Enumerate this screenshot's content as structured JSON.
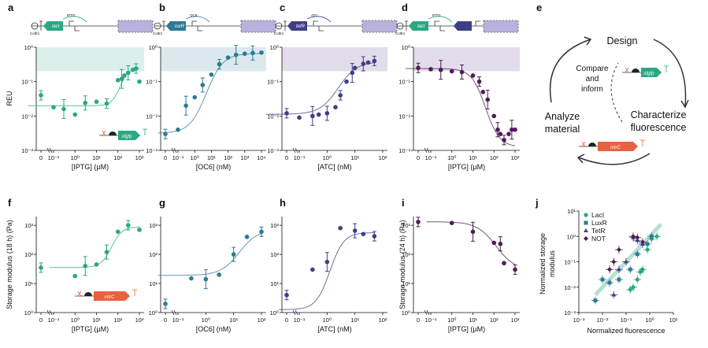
{
  "colors": {
    "lacI": "#2aa882",
    "luxR": "#2c7a95",
    "tetR": "#3e3f86",
    "not": "#4d1d55",
    "mtrc": "#e8623f",
    "shade_green": "#dcefeb",
    "shade_blue": "#dbe9ee",
    "shade_purple": "#e3dcea",
    "box_fill": "#b8b1dc"
  },
  "figure": {
    "panel_labels": [
      "a",
      "b",
      "c",
      "d",
      "e",
      "f",
      "g",
      "h",
      "i",
      "j"
    ],
    "top_ylabel": "REU",
    "bottom_ylabel": "Storage modulus (18 h) (Pa)",
    "bottom_ylabel_i": "Storage modulus (24 h) (Pa)",
    "y_top_ticks": [
      "10⁰",
      "10⁻¹",
      "10⁻²",
      "10⁻³"
    ],
    "y_bottom_ticks": [
      "10³",
      "10²",
      "10¹",
      "10⁰"
    ]
  },
  "constructs": {
    "a": {
      "inducer": "IPTG",
      "ori": "ColE1",
      "gene": "lacI",
      "prom": "P_tac"
    },
    "b": {
      "inducer": "OC6",
      "ori": "ColE1",
      "gene": "luxR",
      "prom": "P_lux"
    },
    "c": {
      "inducer": "ATC",
      "ori": "ColE1",
      "gene": "tetR",
      "prom": "P_tet"
    },
    "d": {
      "inducer": "IPTG",
      "ori": "ColE1",
      "gene": "lacI",
      "prom": "P_tac",
      "gene2": "tetR",
      "prom2": "P_tet"
    },
    "sfgfp": "sfgfp",
    "mtrc": "mtrC"
  },
  "cycle": {
    "design": "Design",
    "characterize_1": "Characterize",
    "characterize_2": "fluorescence",
    "analyze_1": "Analyze",
    "analyze_2": "material",
    "compare_1": "Compare",
    "compare_2": "and",
    "compare_3": "inform"
  },
  "legend_j": [
    "LacI",
    "LuxR",
    "TetR",
    "NOT"
  ],
  "chart_data": [
    {
      "panel": "a",
      "type": "scatter",
      "xlabel": "[IPTG] (µM)",
      "ylabel": "REU",
      "yscale": "log",
      "ylim": [
        0.001,
        1
      ],
      "xticks": [
        "0",
        "10⁻¹",
        "10⁰",
        "10¹",
        "10²",
        "10³"
      ],
      "x": [
        0,
        0.1,
        0.3,
        1,
        3,
        10,
        30,
        100,
        150,
        200,
        300,
        500,
        700,
        1000
      ],
      "y": [
        0.04,
        0.018,
        0.016,
        0.011,
        0.024,
        0.026,
        0.023,
        0.11,
        0.12,
        0.15,
        0.18,
        0.22,
        0.24,
        0.1
      ]
    },
    {
      "panel": "b",
      "type": "scatter",
      "xlabel": "[OC6] (nM)",
      "ylabel": "REU",
      "yscale": "log",
      "ylim": [
        0.001,
        1
      ],
      "xticks": [
        "0",
        "10⁻¹",
        "10⁰",
        "10¹",
        "10²",
        "10³",
        "10⁴"
      ],
      "x": [
        0,
        0.1,
        0.3,
        1,
        3,
        10,
        30,
        100,
        300,
        1000,
        3000,
        10000
      ],
      "y": [
        0.003,
        0.004,
        0.02,
        0.035,
        0.08,
        0.16,
        0.32,
        0.5,
        0.6,
        0.65,
        0.68,
        0.7
      ]
    },
    {
      "panel": "c",
      "type": "scatter",
      "xlabel": "[ATC] (nM)",
      "ylabel": "REU",
      "yscale": "log",
      "ylim": [
        0.001,
        1
      ],
      "xticks": [
        "0",
        "10⁻¹",
        "10⁰",
        "10¹",
        "10²"
      ],
      "x": [
        0,
        0.1,
        0.3,
        0.5,
        1,
        2,
        3,
        5,
        8,
        10,
        20,
        30,
        50
      ],
      "y": [
        0.012,
        0.009,
        0.01,
        0.011,
        0.012,
        0.018,
        0.04,
        0.1,
        0.18,
        0.25,
        0.33,
        0.36,
        0.4
      ]
    },
    {
      "panel": "d",
      "type": "scatter",
      "xlabel": "[IPTG] (µM)",
      "ylabel": "REU",
      "yscale": "log",
      "ylim": [
        0.001,
        1
      ],
      "xticks": [
        "0",
        "10⁻¹",
        "10⁰",
        "10¹",
        "10²",
        "10³"
      ],
      "x": [
        0,
        0.1,
        0.3,
        1,
        3,
        10,
        20,
        30,
        50,
        100,
        150,
        200,
        300,
        500,
        700,
        1000
      ],
      "y": [
        0.25,
        0.23,
        0.22,
        0.2,
        0.19,
        0.15,
        0.1,
        0.05,
        0.03,
        0.01,
        0.004,
        0.003,
        0.002,
        0.003,
        0.004,
        0.004
      ]
    },
    {
      "panel": "f",
      "type": "scatter",
      "xlabel": "[IPTG] (µM)",
      "ylabel": "Storage modulus (18 h) (Pa)",
      "yscale": "log",
      "ylim": [
        1,
        2000
      ],
      "xticks": [
        "0",
        "10⁻¹",
        "10⁰",
        "10¹",
        "10²",
        "10³"
      ],
      "x": [
        0,
        1,
        3,
        10,
        30,
        100,
        300,
        1000
      ],
      "y": [
        35,
        18,
        40,
        45,
        120,
        600,
        1000,
        700
      ]
    },
    {
      "panel": "g",
      "type": "scatter",
      "xlabel": "[OC6] (nM)",
      "ylabel": "Storage modulus (18 h) (Pa)",
      "yscale": "log",
      "ylim": [
        1,
        2000
      ],
      "xticks": [
        "0",
        "10⁻¹",
        "10⁰",
        "10¹",
        "10²"
      ],
      "x": [
        0,
        0.3,
        1,
        3,
        10,
        30,
        100
      ],
      "y": [
        2,
        15,
        14,
        20,
        100,
        400,
        600
      ]
    },
    {
      "panel": "h",
      "type": "scatter",
      "xlabel": "[ATC] (nM)",
      "ylabel": "Storage modulus (18 h) (Pa)",
      "yscale": "log",
      "ylim": [
        1,
        2000
      ],
      "xticks": [
        "0",
        "10⁻¹",
        "10⁰",
        "10¹",
        "10²"
      ],
      "x": [
        0,
        0.3,
        1,
        3,
        10,
        20,
        50
      ],
      "y": [
        4,
        30,
        55,
        800,
        650,
        500,
        420
      ]
    },
    {
      "panel": "i",
      "type": "scatter",
      "xlabel": "[IPTG] (µM)",
      "ylabel": "Storage modulus (24 h) (Pa)",
      "yscale": "log",
      "ylim": [
        1,
        2000
      ],
      "xticks": [
        "0",
        "10⁻¹",
        "10⁰",
        "10¹",
        "10²",
        "10³"
      ],
      "x": [
        0,
        1,
        10,
        100,
        200,
        300,
        1000
      ],
      "y": [
        1300,
        1200,
        600,
        250,
        230,
        50,
        30
      ]
    },
    {
      "panel": "j",
      "type": "scatter",
      "xlabel": "Normalized fluorescence",
      "ylabel": "Normalized storage modulus",
      "xscale": "log",
      "yscale": "log",
      "xlim": [
        0.001,
        10
      ],
      "ylim": [
        0.001,
        10
      ],
      "xticks": [
        "10⁻³",
        "10⁻²",
        "10⁻¹",
        "10⁰",
        "10¹"
      ],
      "yticks": [
        "10¹",
        "10⁰",
        "10⁻¹",
        "10⁻²",
        "10⁻³"
      ],
      "series": [
        {
          "name": "LacI",
          "marker": "circle",
          "x": [
            0.3,
            0.5,
            0.8,
            1.2,
            2.0,
            0.2,
            0.15,
            0.4
          ],
          "y": [
            0.02,
            0.05,
            0.3,
            0.8,
            1.0,
            0.01,
            0.008,
            0.04
          ]
        },
        {
          "name": "LuxR",
          "marker": "square",
          "x": [
            0.005,
            0.01,
            0.02,
            0.05,
            0.15,
            0.3,
            0.8,
            1.2
          ],
          "y": [
            0.003,
            0.02,
            0.015,
            0.02,
            0.05,
            0.2,
            0.5,
            1.0
          ]
        },
        {
          "name": "TetR",
          "marker": "triangle",
          "x": [
            0.03,
            0.05,
            0.1,
            0.2,
            0.3,
            0.5
          ],
          "y": [
            0.005,
            0.05,
            0.1,
            0.9,
            0.7,
            0.5
          ]
        },
        {
          "name": "NOT",
          "marker": "diamond",
          "x": [
            0.2,
            0.3,
            0.5,
            0.05,
            0.03,
            0.02
          ],
          "y": [
            1.0,
            0.9,
            0.6,
            0.3,
            0.1,
            0.05
          ]
        }
      ]
    }
  ]
}
